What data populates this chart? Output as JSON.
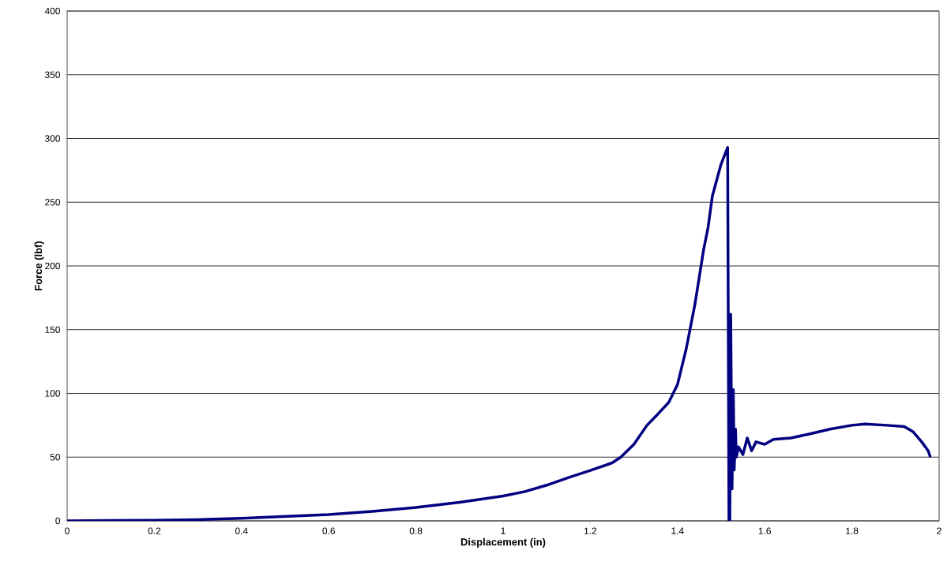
{
  "chart_data": {
    "type": "line",
    "xlabel": "Displacement (in)",
    "ylabel": "Force (lbf)",
    "xlim": [
      0,
      2
    ],
    "xticks": [
      0,
      0.2,
      0.4,
      0.6,
      0.8,
      1,
      1.2,
      1.4,
      1.6,
      1.8,
      2
    ],
    "ylim": [
      0,
      400
    ],
    "yticks": [
      0,
      50,
      100,
      150,
      200,
      250,
      300,
      350,
      400
    ],
    "grid": "y",
    "marker": "none",
    "line_style": "solid",
    "series": [
      {
        "color": "#000080",
        "x": [
          0,
          0.1,
          0.2,
          0.3,
          0.4,
          0.5,
          0.6,
          0.7,
          0.8,
          0.9,
          1.0,
          1.05,
          1.1,
          1.15,
          1.2,
          1.25,
          1.27,
          1.3,
          1.33,
          1.35,
          1.38,
          1.4,
          1.42,
          1.44,
          1.46,
          1.47,
          1.48,
          1.5,
          1.515,
          1.518,
          1.52,
          1.522,
          1.525,
          1.528,
          1.53,
          1.533,
          1.535,
          1.54,
          1.55,
          1.56,
          1.57,
          1.58,
          1.6,
          1.62,
          1.66,
          1.7,
          1.75,
          1.8,
          1.83,
          1.88,
          1.92,
          1.94,
          1.96,
          1.975,
          1.98
        ],
        "values": [
          0,
          0.3,
          0.5,
          1,
          2,
          3.5,
          5,
          7.5,
          10.5,
          14.5,
          19.5,
          23,
          28,
          34,
          39.5,
          45.5,
          50,
          60,
          75,
          82,
          93,
          107,
          135,
          170,
          213,
          230,
          255,
          280,
          293,
          0,
          0,
          162,
          25,
          103,
          40,
          72,
          50,
          58,
          52,
          65,
          55,
          62,
          60,
          64,
          65,
          68,
          72,
          75,
          76,
          75,
          74,
          70,
          62,
          55,
          50
        ]
      }
    ]
  }
}
